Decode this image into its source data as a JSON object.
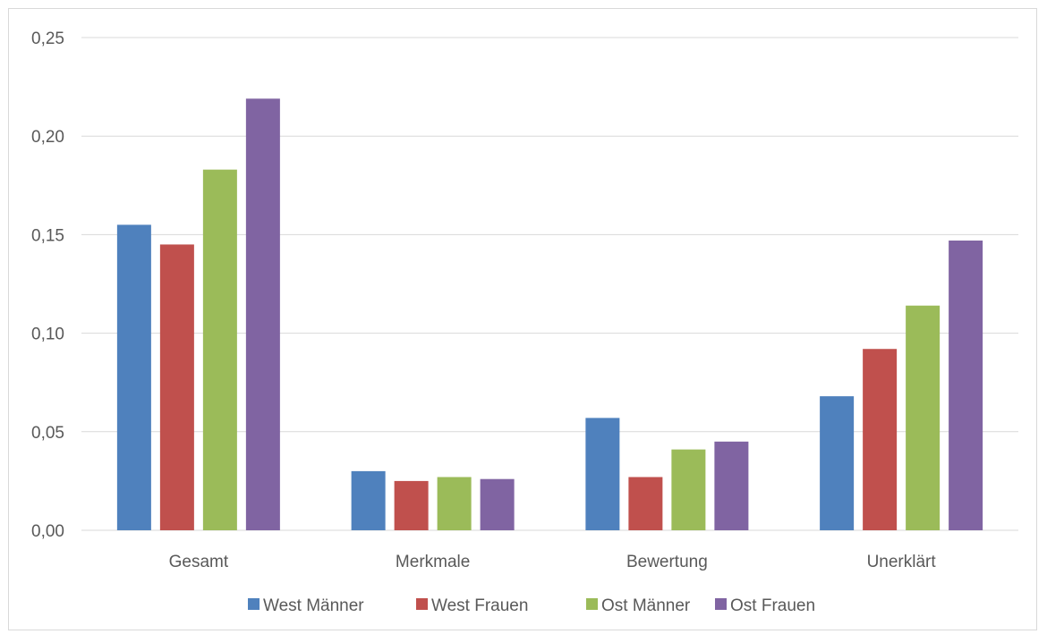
{
  "chart_data": {
    "type": "bar",
    "categories": [
      "Gesamt",
      "Merkmale",
      "Bewertung",
      "Unerklärt"
    ],
    "series": [
      {
        "name": "West Männer",
        "color": "#4f81bd",
        "values": [
          0.155,
          0.03,
          0.057,
          0.068
        ]
      },
      {
        "name": "West Frauen",
        "color": "#c0504d",
        "values": [
          0.145,
          0.025,
          0.027,
          0.092
        ]
      },
      {
        "name": "Ost Männer",
        "color": "#9bbb59",
        "values": [
          0.183,
          0.027,
          0.041,
          0.114
        ]
      },
      {
        "name": "Ost Frauen",
        "color": "#8064a2",
        "values": [
          0.219,
          0.026,
          0.045,
          0.147
        ]
      }
    ],
    "yticks": [
      "0,00",
      "0,05",
      "0,10",
      "0,15",
      "0,20",
      "0,25"
    ],
    "ylim": [
      0,
      0.25
    ],
    "grid": true,
    "legend": "bottom"
  }
}
